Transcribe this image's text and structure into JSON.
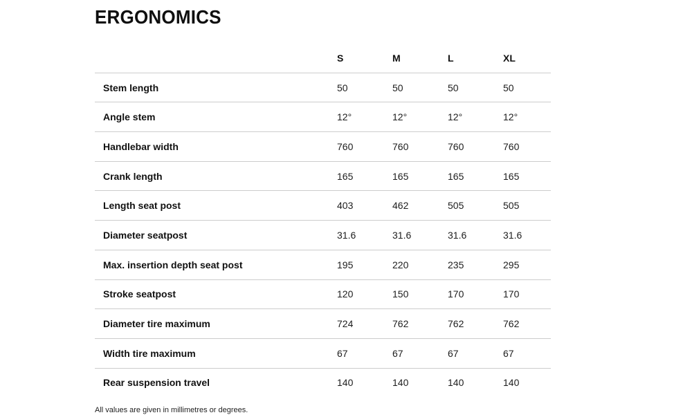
{
  "page": {
    "title": "ERGONOMICS",
    "footnote": "All values are given in millimetres or degrees."
  },
  "table": {
    "columns": [
      "S",
      "M",
      "L",
      "XL"
    ],
    "rows": [
      {
        "label": "Stem length",
        "values": [
          "50",
          "50",
          "50",
          "50"
        ]
      },
      {
        "label": "Angle stem",
        "values": [
          "12°",
          "12°",
          "12°",
          "12°"
        ]
      },
      {
        "label": "Handlebar width",
        "values": [
          "760",
          "760",
          "760",
          "760"
        ]
      },
      {
        "label": "Crank length",
        "values": [
          "165",
          "165",
          "165",
          "165"
        ]
      },
      {
        "label": "Length seat post",
        "values": [
          "403",
          "462",
          "505",
          "505"
        ]
      },
      {
        "label": "Diameter seatpost",
        "values": [
          "31.6",
          "31.6",
          "31.6",
          "31.6"
        ]
      },
      {
        "label": "Max. insertion depth seat post",
        "values": [
          "195",
          "220",
          "235",
          "295"
        ]
      },
      {
        "label": "Stroke seatpost",
        "values": [
          "120",
          "150",
          "170",
          "170"
        ]
      },
      {
        "label": "Diameter tire maximum",
        "values": [
          "724",
          "762",
          "762",
          "762"
        ]
      },
      {
        "label": "Width tire maximum",
        "values": [
          "67",
          "67",
          "67",
          "67"
        ]
      },
      {
        "label": "Rear suspension travel",
        "values": [
          "140",
          "140",
          "140",
          "140"
        ]
      }
    ]
  },
  "colors": {
    "text": "#1d1d1d",
    "heading": "#0f0f0f",
    "divider": "#cccccc",
    "background": "#ffffff"
  }
}
